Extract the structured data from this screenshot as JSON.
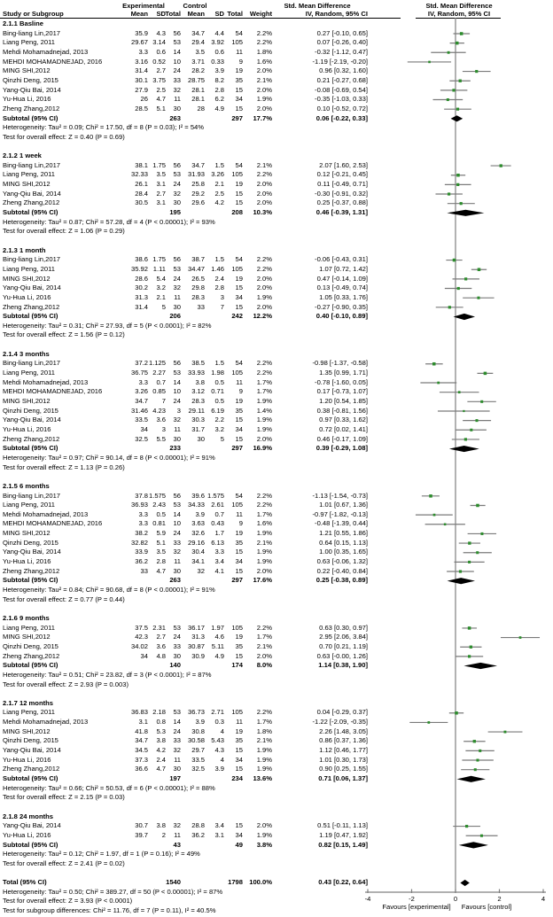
{
  "header": {
    "group_experimental": "Experimental",
    "group_control": "Control",
    "smd_left": "Std. Mean Difference",
    "smd_right": "Std. Mean Difference",
    "study_col": "Study or Subgroup",
    "mean": "Mean",
    "sd": "SD",
    "total": "Total",
    "weight": "Weight",
    "iv_left": "IV, Random, 95% CI",
    "iv_right": "IV, Random, 95% CI"
  },
  "axis": {
    "ticks": [
      "-4",
      "-2",
      "0",
      "2",
      "4"
    ],
    "tick_values": [
      -4,
      -2,
      0,
      2,
      4
    ],
    "favours_left": "Favours [experimental]",
    "favours_right": "Favours [control]"
  },
  "colors": {
    "marker_green": "#2d8c2d",
    "ci_gray": "#7a7a7a",
    "axis_gray": "#808080",
    "diamond_black": "#000000"
  },
  "chart_data": {
    "type": "forest",
    "effect_measure": "Std. Mean Difference, IV, Random, 95% CI",
    "xlim": [
      -4,
      4
    ],
    "subgroups": [
      {
        "name": "2.1.1 Basline",
        "studies": [
          {
            "label": "Bing-liang Lin,2017",
            "mean1": "35.9",
            "sd1": "4.3",
            "n1": "56",
            "mean2": "34.7",
            "sd2": "4.4",
            "n2": "54",
            "weight": "2.2%",
            "ci": "0.27 [-0.10, 0.65]"
          },
          {
            "label": "Liang Peng, 2011",
            "mean1": "29.67",
            "sd1": "3.14",
            "n1": "53",
            "mean2": "29.4",
            "sd2": "3.92",
            "n2": "105",
            "weight": "2.2%",
            "ci": "0.07 [-0.26, 0.40]"
          },
          {
            "label": "Mehdi Mohamadnejad, 2013",
            "mean1": "3.3",
            "sd1": "0.6",
            "n1": "14",
            "mean2": "3.5",
            "sd2": "0.6",
            "n2": "11",
            "weight": "1.8%",
            "ci": "-0.32 [-1.12, 0.47]"
          },
          {
            "label": "MEHDI MOHAMADNEJAD, 2016",
            "mean1": "3.16",
            "sd1": "0.52",
            "n1": "10",
            "mean2": "3.71",
            "sd2": "0.33",
            "n2": "9",
            "weight": "1.6%",
            "ci": "-1.19 [-2.19, -0.20]"
          },
          {
            "label": "MING SHI,2012",
            "mean1": "31.4",
            "sd1": "2.7",
            "n1": "24",
            "mean2": "28.2",
            "sd2": "3.9",
            "n2": "19",
            "weight": "2.0%",
            "ci": "0.96 [0.32, 1.60]"
          },
          {
            "label": "Qinzhi Deng, 2015",
            "mean1": "30.1",
            "sd1": "3.75",
            "n1": "33",
            "mean2": "28.75",
            "sd2": "8.2",
            "n2": "35",
            "weight": "2.1%",
            "ci": "0.21 [-0.27, 0.68]"
          },
          {
            "label": "Yang-Qiu Bai, 2014",
            "mean1": "27.9",
            "sd1": "2.5",
            "n1": "32",
            "mean2": "28.1",
            "sd2": "2.8",
            "n2": "15",
            "weight": "2.0%",
            "ci": "-0.08 [-0.69, 0.54]"
          },
          {
            "label": "Yu-Hua Li, 2016",
            "mean1": "26",
            "sd1": "4.7",
            "n1": "11",
            "mean2": "28.1",
            "sd2": "6.2",
            "n2": "34",
            "weight": "1.9%",
            "ci": "-0.35 [-1.03, 0.33]"
          },
          {
            "label": "Zheng Zhang,2012",
            "mean1": "28.5",
            "sd1": "5.1",
            "n1": "30",
            "mean2": "28",
            "sd2": "4.9",
            "n2": "15",
            "weight": "2.0%",
            "ci": "0.10 [-0.52, 0.72]"
          }
        ],
        "subtotal": {
          "label": "Subtotal (95% CI)",
          "n1": "263",
          "n2": "297",
          "weight": "17.7%",
          "ci": "0.06 [-0.22, 0.33]"
        },
        "heterogeneity": "Heterogeneity: Tau² = 0.09; Chi² = 17.50, df = 8 (P = 0.03); I² = 54%",
        "test": "Test for overall effect: Z = 0.40 (P = 0.69)"
      },
      {
        "name": "2.1.2 1 week",
        "studies": [
          {
            "label": "Bing-liang Lin,2017",
            "mean1": "38.1",
            "sd1": "1.75",
            "n1": "56",
            "mean2": "34.7",
            "sd2": "1.5",
            "n2": "54",
            "weight": "2.1%",
            "ci": "2.07 [1.60, 2.53]"
          },
          {
            "label": "Liang Peng, 2011",
            "mean1": "32.33",
            "sd1": "3.5",
            "n1": "53",
            "mean2": "31.93",
            "sd2": "3.26",
            "n2": "105",
            "weight": "2.2%",
            "ci": "0.12 [-0.21, 0.45]"
          },
          {
            "label": "MING SHI,2012",
            "mean1": "26.1",
            "sd1": "3.1",
            "n1": "24",
            "mean2": "25.8",
            "sd2": "2.1",
            "n2": "19",
            "weight": "2.0%",
            "ci": "0.11 [-0.49, 0.71]"
          },
          {
            "label": "Yang-Qiu Bai, 2014",
            "mean1": "28.4",
            "sd1": "2.7",
            "n1": "32",
            "mean2": "29.2",
            "sd2": "2.5",
            "n2": "15",
            "weight": "2.0%",
            "ci": "-0.30 [-0.91, 0.32]"
          },
          {
            "label": "Zheng Zhang,2012",
            "mean1": "30.5",
            "sd1": "3.1",
            "n1": "30",
            "mean2": "29.6",
            "sd2": "4.2",
            "n2": "15",
            "weight": "2.0%",
            "ci": "0.25 [-0.37, 0.88]"
          }
        ],
        "subtotal": {
          "label": "Subtotal (95% CI)",
          "n1": "195",
          "n2": "208",
          "weight": "10.3%",
          "ci": "0.46 [-0.39, 1.31]"
        },
        "heterogeneity": "Heterogeneity: Tau² = 0.87; Chi² = 57.28, df = 4 (P < 0.00001); I² = 93%",
        "test": "Test for overall effect: Z = 1.06 (P = 0.29)"
      },
      {
        "name": "2.1.3 1 month",
        "studies": [
          {
            "label": "Bing-liang Lin,2017",
            "mean1": "38.6",
            "sd1": "1.75",
            "n1": "56",
            "mean2": "38.7",
            "sd2": "1.5",
            "n2": "54",
            "weight": "2.2%",
            "ci": "-0.06 [-0.43, 0.31]"
          },
          {
            "label": "Liang Peng, 2011",
            "mean1": "35.92",
            "sd1": "1.11",
            "n1": "53",
            "mean2": "34.47",
            "sd2": "1.46",
            "n2": "105",
            "weight": "2.2%",
            "ci": "1.07 [0.72, 1.42]"
          },
          {
            "label": "MING SHI,2012",
            "mean1": "28.6",
            "sd1": "5.4",
            "n1": "24",
            "mean2": "26.5",
            "sd2": "2.4",
            "n2": "19",
            "weight": "2.0%",
            "ci": "0.47 [-0.14, 1.09]"
          },
          {
            "label": "Yang-Qiu Bai, 2014",
            "mean1": "30.2",
            "sd1": "3.2",
            "n1": "32",
            "mean2": "29.8",
            "sd2": "2.8",
            "n2": "15",
            "weight": "2.0%",
            "ci": "0.13 [-0.49, 0.74]"
          },
          {
            "label": "Yu-Hua Li, 2016",
            "mean1": "31.3",
            "sd1": "2.1",
            "n1": "11",
            "mean2": "28.3",
            "sd2": "3",
            "n2": "34",
            "weight": "1.9%",
            "ci": "1.05 [0.33, 1.76]"
          },
          {
            "label": "Zheng Zhang,2012",
            "mean1": "31.4",
            "sd1": "5",
            "n1": "30",
            "mean2": "33",
            "sd2": "7",
            "n2": "15",
            "weight": "2.0%",
            "ci": "-0.27 [-0.90, 0.35]"
          }
        ],
        "subtotal": {
          "label": "Subtotal (95% CI)",
          "n1": "206",
          "n2": "242",
          "weight": "12.2%",
          "ci": "0.40 [-0.10, 0.89]"
        },
        "heterogeneity": "Heterogeneity: Tau² = 0.31; Chi² = 27.93, df = 5 (P < 0.0001); I² = 82%",
        "test": "Test for overall effect: Z = 1.56 (P = 0.12)"
      },
      {
        "name": "2.1.4 3 months",
        "studies": [
          {
            "label": "Bing-liang Lin,2017",
            "mean1": "37.2",
            "sd1": "1.125",
            "n1": "56",
            "mean2": "38.5",
            "sd2": "1.5",
            "n2": "54",
            "weight": "2.2%",
            "ci": "-0.98 [-1.37, -0.58]"
          },
          {
            "label": "Liang Peng, 2011",
            "mean1": "36.75",
            "sd1": "2.27",
            "n1": "53",
            "mean2": "33.93",
            "sd2": "1.98",
            "n2": "105",
            "weight": "2.2%",
            "ci": "1.35 [0.99, 1.71]"
          },
          {
            "label": "Mehdi Mohamadnejad, 2013",
            "mean1": "3.3",
            "sd1": "0.7",
            "n1": "14",
            "mean2": "3.8",
            "sd2": "0.5",
            "n2": "11",
            "weight": "1.7%",
            "ci": "-0.78 [-1.60, 0.05]"
          },
          {
            "label": "MEHDI MOHAMADNEJAD, 2016",
            "mean1": "3.26",
            "sd1": "0.85",
            "n1": "10",
            "mean2": "3.12",
            "sd2": "0.71",
            "n2": "9",
            "weight": "1.7%",
            "ci": "0.17 [-0.73, 1.07]"
          },
          {
            "label": "MING SHI,2012",
            "mean1": "34.7",
            "sd1": "7",
            "n1": "24",
            "mean2": "28.3",
            "sd2": "0.5",
            "n2": "19",
            "weight": "1.9%",
            "ci": "1.20 [0.54, 1.85]"
          },
          {
            "label": "Qinzhi Deng, 2015",
            "mean1": "31.46",
            "sd1": "4.23",
            "n1": "3",
            "mean2": "29.11",
            "sd2": "6.19",
            "n2": "35",
            "weight": "1.4%",
            "ci": "0.38 [-0.81, 1.56]"
          },
          {
            "label": "Yang-Qiu Bai, 2014",
            "mean1": "33.5",
            "sd1": "3.6",
            "n1": "32",
            "mean2": "30.3",
            "sd2": "2.2",
            "n2": "15",
            "weight": "1.9%",
            "ci": "0.97 [0.33, 1.62]"
          },
          {
            "label": "Yu-Hua Li, 2016",
            "mean1": "34",
            "sd1": "3",
            "n1": "11",
            "mean2": "31.7",
            "sd2": "3.2",
            "n2": "34",
            "weight": "1.9%",
            "ci": "0.72 [0.02, 1.41]"
          },
          {
            "label": "Zheng Zhang,2012",
            "mean1": "32.5",
            "sd1": "5.5",
            "n1": "30",
            "mean2": "30",
            "sd2": "5",
            "n2": "15",
            "weight": "2.0%",
            "ci": "0.46 [-0.17, 1.09]"
          }
        ],
        "subtotal": {
          "label": "Subtotal (95% CI)",
          "n1": "233",
          "n2": "297",
          "weight": "16.9%",
          "ci": "0.39 [-0.29, 1.08]"
        },
        "heterogeneity": "Heterogeneity: Tau² = 0.97; Chi² = 90.14, df = 8 (P < 0.00001); I² = 91%",
        "test": "Test for overall effect: Z = 1.13 (P = 0.26)"
      },
      {
        "name": "2.1.5 6 months",
        "studies": [
          {
            "label": "Bing-liang Lin,2017",
            "mean1": "37.8",
            "sd1": "1.575",
            "n1": "56",
            "mean2": "39.6",
            "sd2": "1.575",
            "n2": "54",
            "weight": "2.2%",
            "ci": "-1.13 [-1.54, -0.73]"
          },
          {
            "label": "Liang Peng, 2011",
            "mean1": "36.93",
            "sd1": "2.43",
            "n1": "53",
            "mean2": "34.33",
            "sd2": "2.61",
            "n2": "105",
            "weight": "2.2%",
            "ci": "1.01 [0.67, 1.36]"
          },
          {
            "label": "Mehdi Mohamadnejad, 2013",
            "mean1": "3.3",
            "sd1": "0.5",
            "n1": "14",
            "mean2": "3.9",
            "sd2": "0.7",
            "n2": "11",
            "weight": "1.7%",
            "ci": "-0.97 [-1.82, -0.13]"
          },
          {
            "label": "MEHDI MOHAMADNEJAD, 2016",
            "mean1": "3.3",
            "sd1": "0.81",
            "n1": "10",
            "mean2": "3.63",
            "sd2": "0.43",
            "n2": "9",
            "weight": "1.6%",
            "ci": "-0.48 [-1.39, 0.44]"
          },
          {
            "label": "MING SHI,2012",
            "mean1": "38.2",
            "sd1": "5.9",
            "n1": "24",
            "mean2": "32.6",
            "sd2": "1.7",
            "n2": "19",
            "weight": "1.9%",
            "ci": "1.21 [0.55, 1.86]"
          },
          {
            "label": "Qinzhi Deng, 2015",
            "mean1": "32.82",
            "sd1": "5.1",
            "n1": "33",
            "mean2": "29.16",
            "sd2": "6.13",
            "n2": "35",
            "weight": "2.1%",
            "ci": "0.64 [0.15, 1.13]"
          },
          {
            "label": "Yang-Qiu Bai, 2014",
            "mean1": "33.9",
            "sd1": "3.5",
            "n1": "32",
            "mean2": "30.4",
            "sd2": "3.3",
            "n2": "15",
            "weight": "1.9%",
            "ci": "1.00 [0.35, 1.65]"
          },
          {
            "label": "Yu-Hua Li, 2016",
            "mean1": "36.2",
            "sd1": "2.8",
            "n1": "11",
            "mean2": "34.1",
            "sd2": "3.4",
            "n2": "34",
            "weight": "1.9%",
            "ci": "0.63 [-0.06, 1.32]"
          },
          {
            "label": "Zheng Zhang,2012",
            "mean1": "33",
            "sd1": "4.7",
            "n1": "30",
            "mean2": "32",
            "sd2": "4.1",
            "n2": "15",
            "weight": "2.0%",
            "ci": "0.22 [-0.40, 0.84]"
          }
        ],
        "subtotal": {
          "label": "Subtotal (95% CI)",
          "n1": "263",
          "n2": "297",
          "weight": "17.6%",
          "ci": "0.25 [-0.38, 0.89]"
        },
        "heterogeneity": "Heterogeneity: Tau² = 0.84; Chi² = 90.68, df = 8 (P < 0.00001); I² = 91%",
        "test": "Test for overall effect: Z = 0.77 (P = 0.44)"
      },
      {
        "name": "2.1.6 9 months",
        "studies": [
          {
            "label": "Liang Peng, 2011",
            "mean1": "37.5",
            "sd1": "2.31",
            "n1": "53",
            "mean2": "36.17",
            "sd2": "1.97",
            "n2": "105",
            "weight": "2.2%",
            "ci": "0.63 [0.30, 0.97]"
          },
          {
            "label": "MING SHI,2012",
            "mean1": "42.3",
            "sd1": "2.7",
            "n1": "24",
            "mean2": "31.3",
            "sd2": "4.6",
            "n2": "19",
            "weight": "1.7%",
            "ci": "2.95 [2.06, 3.84]"
          },
          {
            "label": "Qinzhi Deng, 2015",
            "mean1": "34.02",
            "sd1": "3.6",
            "n1": "33",
            "mean2": "30.87",
            "sd2": "5.11",
            "n2": "35",
            "weight": "2.1%",
            "ci": "0.70 [0.21, 1.19]"
          },
          {
            "label": "Zheng Zhang,2012",
            "mean1": "34",
            "sd1": "4.8",
            "n1": "30",
            "mean2": "30.9",
            "sd2": "4.9",
            "n2": "15",
            "weight": "2.0%",
            "ci": "0.63 [-0.00, 1.26]"
          }
        ],
        "subtotal": {
          "label": "Subtotal (95% CI)",
          "n1": "140",
          "n2": "174",
          "weight": "8.0%",
          "ci": "1.14 [0.38, 1.90]"
        },
        "heterogeneity": "Heterogeneity: Tau² = 0.51; Chi² = 23.82, df = 3 (P < 0.0001); I² = 87%",
        "test": "Test for overall effect: Z = 2.93 (P = 0.003)"
      },
      {
        "name": "2.1.7 12 months",
        "studies": [
          {
            "label": "Liang Peng, 2011",
            "mean1": "36.83",
            "sd1": "2.18",
            "n1": "53",
            "mean2": "36.73",
            "sd2": "2.71",
            "n2": "105",
            "weight": "2.2%",
            "ci": "0.04 [-0.29, 0.37]"
          },
          {
            "label": "Mehdi Mohamadnejad, 2013",
            "mean1": "3.1",
            "sd1": "0.8",
            "n1": "14",
            "mean2": "3.9",
            "sd2": "0.3",
            "n2": "11",
            "weight": "1.7%",
            "ci": "-1.22 [-2.09, -0.35]"
          },
          {
            "label": "MING SHI,2012",
            "mean1": "41.8",
            "sd1": "5.3",
            "n1": "24",
            "mean2": "30.8",
            "sd2": "4",
            "n2": "19",
            "weight": "1.8%",
            "ci": "2.26 [1.48, 3.05]"
          },
          {
            "label": "Qinzhi Deng, 2015",
            "mean1": "34.7",
            "sd1": "3.8",
            "n1": "33",
            "mean2": "30.58",
            "sd2": "5.43",
            "n2": "35",
            "weight": "2.1%",
            "ci": "0.86 [0.37, 1.36]"
          },
          {
            "label": "Yang-Qiu Bai, 2014",
            "mean1": "34.5",
            "sd1": "4.2",
            "n1": "32",
            "mean2": "29.7",
            "sd2": "4.3",
            "n2": "15",
            "weight": "1.9%",
            "ci": "1.12 [0.46, 1.77]"
          },
          {
            "label": "Yu-Hua Li, 2016",
            "mean1": "37.3",
            "sd1": "2.4",
            "n1": "11",
            "mean2": "33.5",
            "sd2": "4",
            "n2": "34",
            "weight": "1.9%",
            "ci": "1.01 [0.30, 1.73]"
          },
          {
            "label": "Zheng Zhang,2012",
            "mean1": "36.6",
            "sd1": "4.7",
            "n1": "30",
            "mean2": "32.5",
            "sd2": "3.9",
            "n2": "15",
            "weight": "1.9%",
            "ci": "0.90 [0.25, 1.55]"
          }
        ],
        "subtotal": {
          "label": "Subtotal (95% CI)",
          "n1": "197",
          "n2": "234",
          "weight": "13.6%",
          "ci": "0.71 [0.06, 1.37]"
        },
        "heterogeneity": "Heterogeneity: Tau² = 0.66; Chi² = 50.53, df = 6 (P < 0.00001); I² = 88%",
        "test": "Test for overall effect: Z = 2.15 (P = 0.03)"
      },
      {
        "name": "2.1.8 24 months",
        "studies": [
          {
            "label": "Yang-Qiu Bai, 2014",
            "mean1": "30.7",
            "sd1": "3.8",
            "n1": "32",
            "mean2": "28.8",
            "sd2": "3.4",
            "n2": "15",
            "weight": "2.0%",
            "ci": "0.51 [-0.11, 1.13]"
          },
          {
            "label": "Yu-Hua Li, 2016",
            "mean1": "39.7",
            "sd1": "2",
            "n1": "11",
            "mean2": "36.2",
            "sd2": "3.1",
            "n2": "34",
            "weight": "1.9%",
            "ci": "1.19 [0.47, 1.92]"
          }
        ],
        "subtotal": {
          "label": "Subtotal (95% CI)",
          "n1": "43",
          "n2": "49",
          "weight": "3.8%",
          "ci": "0.82 [0.15, 1.49]"
        },
        "heterogeneity": "Heterogeneity: Tau² = 0.12; Chi² = 1.97, df = 1 (P = 0.16); I² = 49%",
        "test": "Test for overall effect: Z = 2.41 (P = 0.02)"
      }
    ],
    "total": {
      "label": "Total (95% CI)",
      "n1": "1540",
      "n2": "1798",
      "weight": "100.0%",
      "ci": "0.43 [0.22, 0.64]"
    },
    "total_heterogeneity": "Heterogeneity: Tau² = 0.50; Chi² = 389.27, df = 50 (P < 0.00001); I² = 87%",
    "total_test": "Test for overall effect: Z = 3.93 (P < 0.0001)",
    "subgroup_test": "Test for subgroup differences: Chi² = 11.76, df = 7 (P = 0.11), I² = 40.5%"
  }
}
